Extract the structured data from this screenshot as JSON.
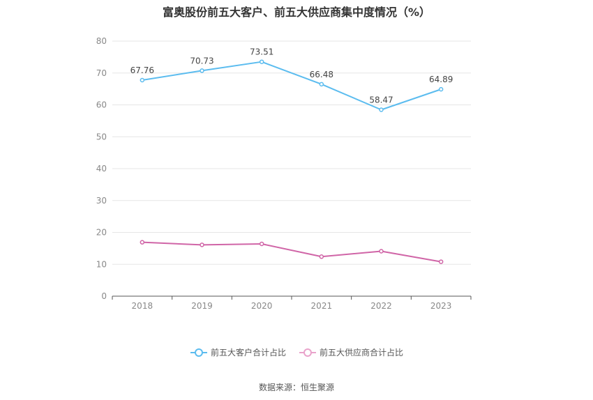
{
  "chart_data": {
    "type": "line",
    "title": "富奥股份前五大客户、前五大供应商集中度情况（%）",
    "categories": [
      "2018",
      "2019",
      "2020",
      "2021",
      "2022",
      "2023"
    ],
    "ylim": [
      0,
      80
    ],
    "yticks": [
      0,
      10,
      20,
      30,
      40,
      50,
      60,
      70,
      80
    ],
    "grid": true,
    "legend_position": "bottom",
    "series": [
      {
        "name": "前五大客户合计占比",
        "color": "#5bbcef",
        "values": [
          67.76,
          70.73,
          73.51,
          66.48,
          58.47,
          64.89
        ],
        "labels": true
      },
      {
        "name": "前五大供应商合计占比",
        "color": "#d065a7",
        "values": [
          16.9,
          16.1,
          16.4,
          12.4,
          14.1,
          10.8
        ],
        "labels": false
      }
    ]
  },
  "footer": {
    "source": "数据来源：恒生聚源"
  }
}
